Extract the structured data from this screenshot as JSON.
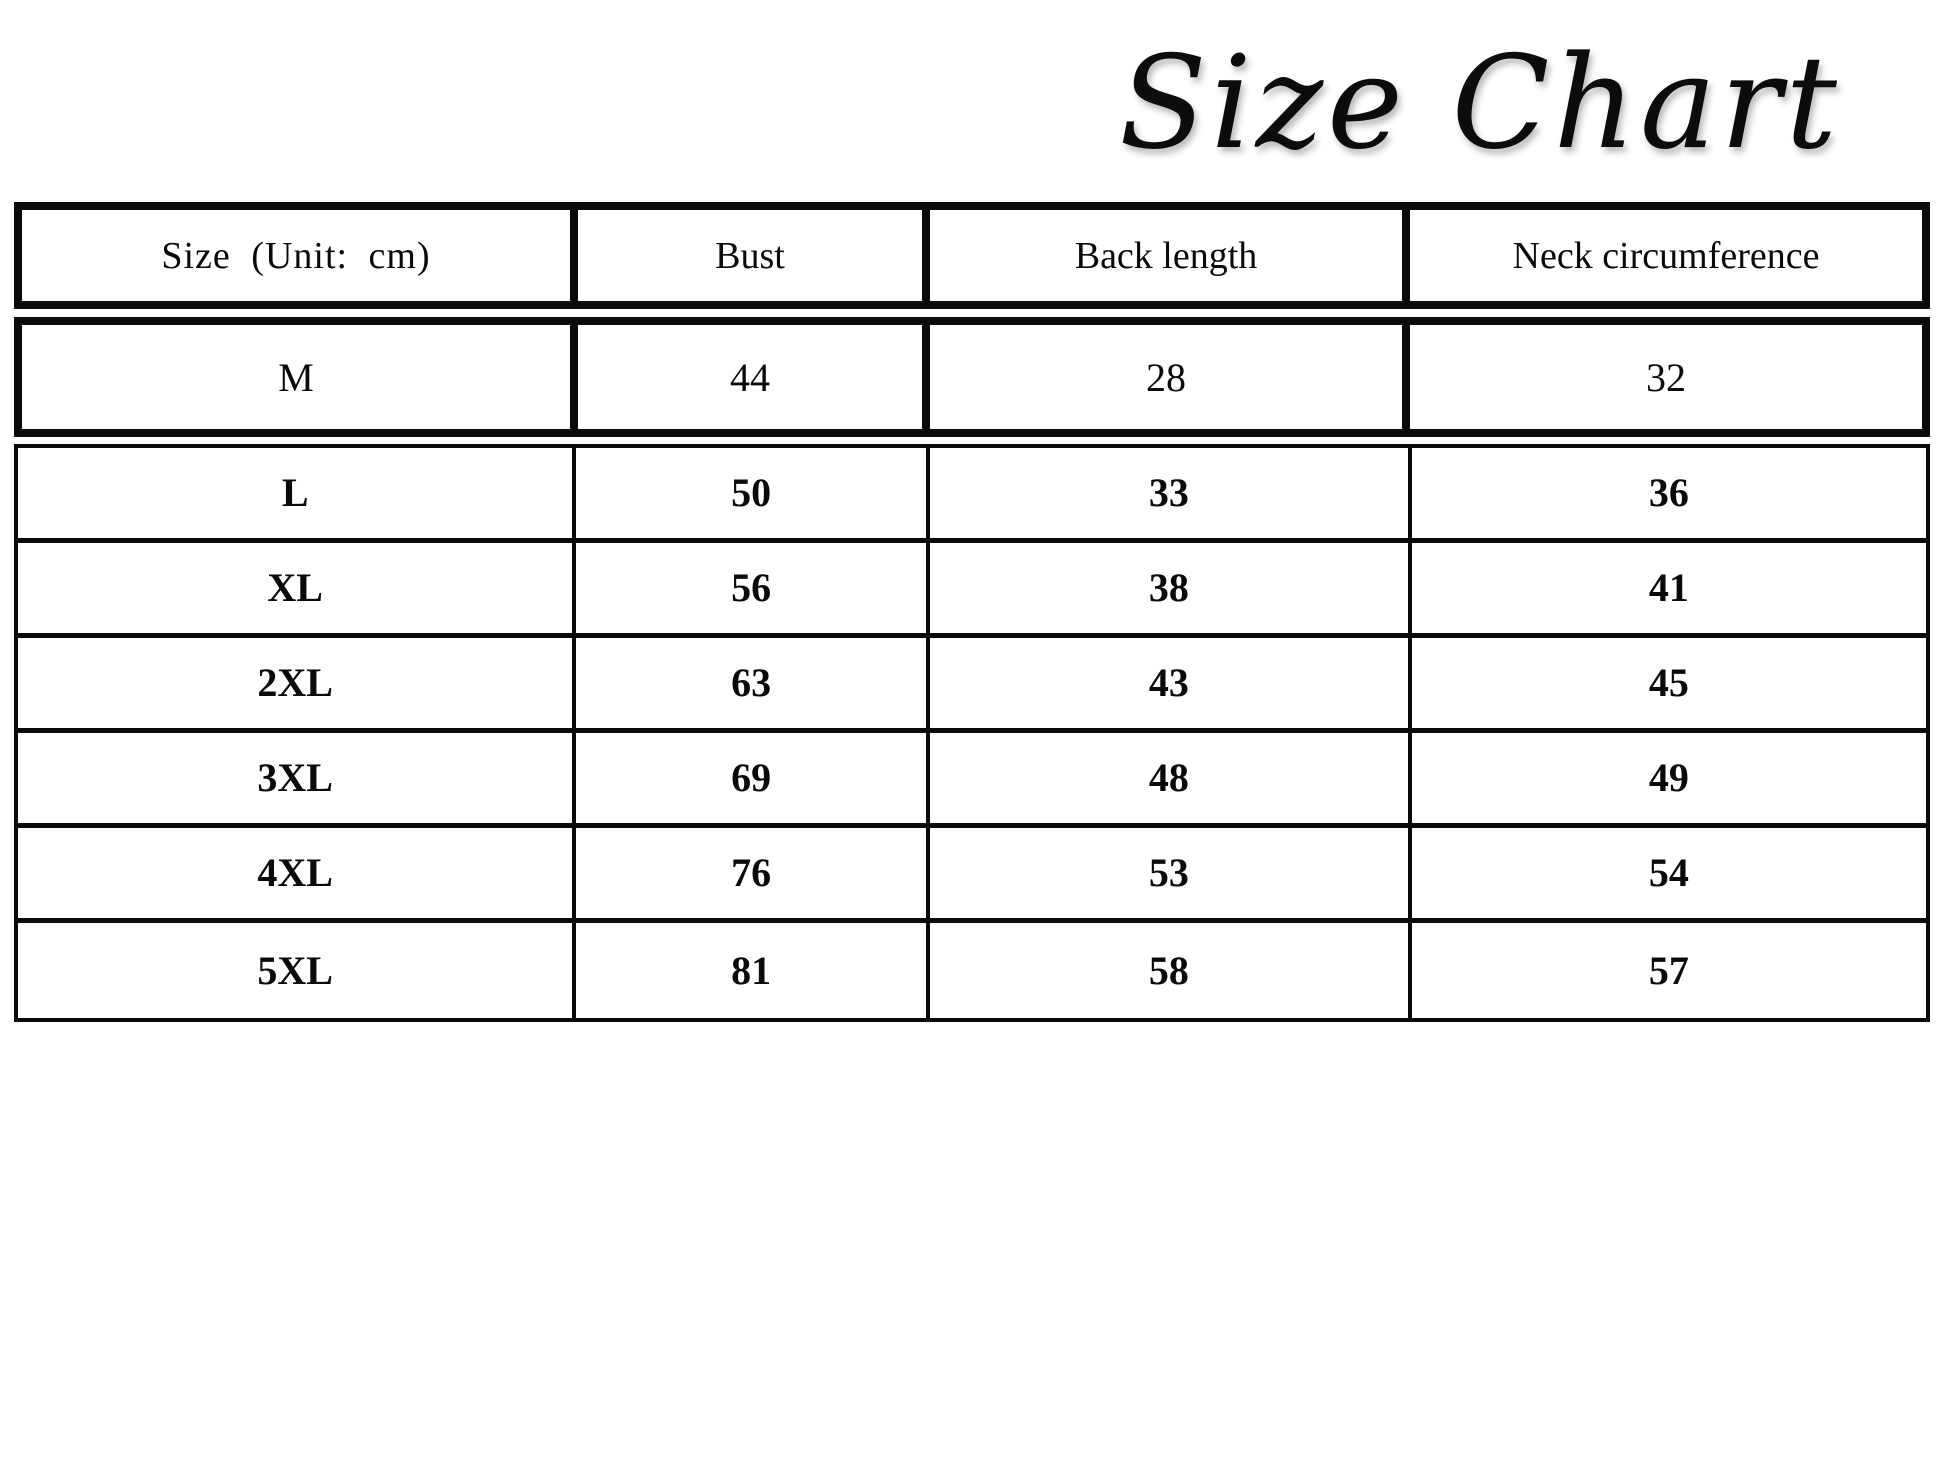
{
  "title": "Size Chart",
  "table": {
    "columns": {
      "size": "Size (Unit: cm)",
      "bust": "Bust",
      "back_length": "Back length",
      "neck": "Neck circumference"
    },
    "rows": [
      {
        "size": "M",
        "bust": "44",
        "back_length": "28",
        "neck": "32"
      },
      {
        "size": "L",
        "bust": "50",
        "back_length": "33",
        "neck": "36"
      },
      {
        "size": "XL",
        "bust": "56",
        "back_length": "38",
        "neck": "41"
      },
      {
        "size": "2XL",
        "bust": "63",
        "back_length": "43",
        "neck": "45"
      },
      {
        "size": "3XL",
        "bust": "69",
        "back_length": "48",
        "neck": "49"
      },
      {
        "size": "4XL",
        "bust": "76",
        "back_length": "53",
        "neck": "54"
      },
      {
        "size": "5XL",
        "bust": "81",
        "back_length": "58",
        "neck": "57"
      }
    ],
    "colors": {
      "border": "#0a0a0a",
      "background": "#ffffff",
      "text": "#0a0a0a"
    }
  }
}
